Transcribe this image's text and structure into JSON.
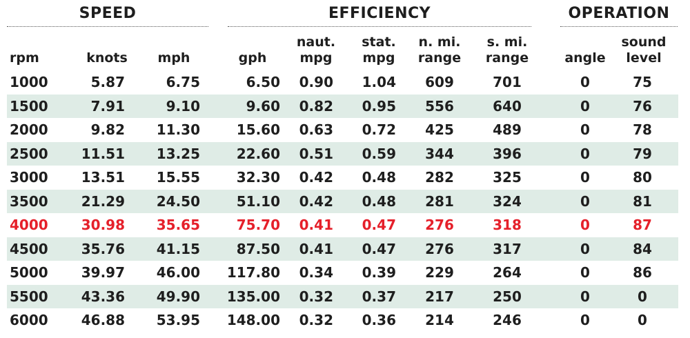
{
  "groups": {
    "speed": "SPEED",
    "efficiency": "EFFICIENCY",
    "operation": "OPERATION"
  },
  "columns": [
    {
      "id": "rpm",
      "lines": [
        "rpm"
      ]
    },
    {
      "id": "knots",
      "lines": [
        "knots"
      ]
    },
    {
      "id": "mph",
      "lines": [
        "mph"
      ]
    },
    {
      "id": "gph",
      "lines": [
        "gph"
      ]
    },
    {
      "id": "naut_mpg",
      "lines": [
        "naut.",
        "mpg"
      ]
    },
    {
      "id": "stat_mpg",
      "lines": [
        "stat.",
        "mpg"
      ]
    },
    {
      "id": "n_mi_range",
      "lines": [
        "n. mi.",
        "range"
      ]
    },
    {
      "id": "s_mi_range",
      "lines": [
        "s. mi.",
        "range"
      ]
    },
    {
      "id": "angle",
      "lines": [
        "angle"
      ]
    },
    {
      "id": "sound_level",
      "lines": [
        "sound",
        "level"
      ]
    }
  ],
  "highlight_color": "#e5202a",
  "stripe_color": "#dfece6",
  "highlight_row": 6,
  "rows": [
    [
      "1000",
      "5.87",
      "6.75",
      "6.50",
      "0.90",
      "1.04",
      "609",
      "701",
      "0",
      "75"
    ],
    [
      "1500",
      "7.91",
      "9.10",
      "9.60",
      "0.82",
      "0.95",
      "556",
      "640",
      "0",
      "76"
    ],
    [
      "2000",
      "9.82",
      "11.30",
      "15.60",
      "0.63",
      "0.72",
      "425",
      "489",
      "0",
      "78"
    ],
    [
      "2500",
      "11.51",
      "13.25",
      "22.60",
      "0.51",
      "0.59",
      "344",
      "396",
      "0",
      "79"
    ],
    [
      "3000",
      "13.51",
      "15.55",
      "32.30",
      "0.42",
      "0.48",
      "282",
      "325",
      "0",
      "80"
    ],
    [
      "3500",
      "21.29",
      "24.50",
      "51.10",
      "0.42",
      "0.48",
      "281",
      "324",
      "0",
      "81"
    ],
    [
      "4000",
      "30.98",
      "35.65",
      "75.70",
      "0.41",
      "0.47",
      "276",
      "318",
      "0",
      "87"
    ],
    [
      "4500",
      "35.76",
      "41.15",
      "87.50",
      "0.41",
      "0.47",
      "276",
      "317",
      "0",
      "84"
    ],
    [
      "5000",
      "39.97",
      "46.00",
      "117.80",
      "0.34",
      "0.39",
      "229",
      "264",
      "0",
      "86"
    ],
    [
      "5500",
      "43.36",
      "49.90",
      "135.00",
      "0.32",
      "0.37",
      "217",
      "250",
      "0",
      "0"
    ],
    [
      "6000",
      "46.88",
      "53.95",
      "148.00",
      "0.32",
      "0.36",
      "214",
      "246",
      "0",
      "0"
    ]
  ]
}
